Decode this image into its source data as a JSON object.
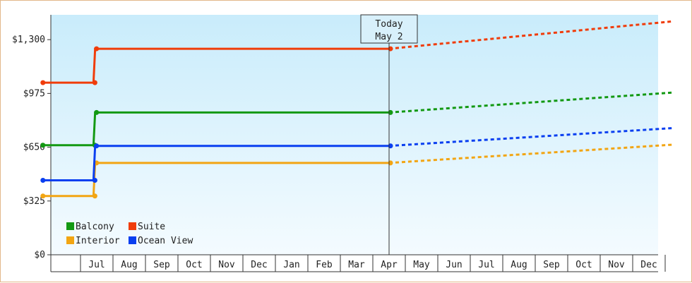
{
  "chart_data": {
    "type": "line",
    "title": "",
    "xlabel": "",
    "ylabel": "",
    "ylim": [
      0,
      1450
    ],
    "y_ticks": [
      {
        "value": 0,
        "label": "$0"
      },
      {
        "value": 325,
        "label": "$325"
      },
      {
        "value": 650,
        "label": "$650"
      },
      {
        "value": 975,
        "label": "$975"
      },
      {
        "value": 1300,
        "label": "$1,300"
      }
    ],
    "x_months": [
      "",
      "Jul",
      "Aug",
      "Sep",
      "Oct",
      "Nov",
      "Dec",
      "Jan",
      "Feb",
      "Mar",
      "Apr",
      "May",
      "Jun",
      "Jul",
      "Aug",
      "Sep",
      "Oct",
      "Nov",
      "Dec",
      ""
    ],
    "today_label": "Today",
    "today_date": "May 2",
    "today_x": 10.5,
    "grid": false,
    "legend_position": "bottom-left",
    "series": [
      {
        "name": "Balcony",
        "color": "#139913",
        "history": [
          [
            -0.2,
            662
          ],
          [
            1.4,
            662
          ],
          [
            1.45,
            860
          ],
          [
            10.5,
            860
          ]
        ],
        "forecast": [
          [
            10.5,
            860
          ],
          [
            19.2,
            980
          ]
        ]
      },
      {
        "name": "Suite",
        "color": "#f03c0a",
        "history": [
          [
            -0.2,
            1040
          ],
          [
            1.4,
            1040
          ],
          [
            1.45,
            1245
          ],
          [
            10.5,
            1245
          ]
        ],
        "forecast": [
          [
            10.5,
            1245
          ],
          [
            19.2,
            1410
          ]
        ]
      },
      {
        "name": "Interior",
        "color": "#f2a513",
        "history": [
          [
            -0.2,
            355
          ],
          [
            1.4,
            355
          ],
          [
            1.45,
            555
          ],
          [
            10.5,
            555
          ]
        ],
        "forecast": [
          [
            10.5,
            555
          ],
          [
            19.2,
            665
          ]
        ]
      },
      {
        "name": "Ocean View",
        "color": "#0a3ff0",
        "history": [
          [
            -0.2,
            450
          ],
          [
            1.4,
            450
          ],
          [
            1.45,
            658
          ],
          [
            10.5,
            658
          ]
        ],
        "forecast": [
          [
            10.5,
            658
          ],
          [
            19.2,
            765
          ]
        ]
      }
    ]
  }
}
